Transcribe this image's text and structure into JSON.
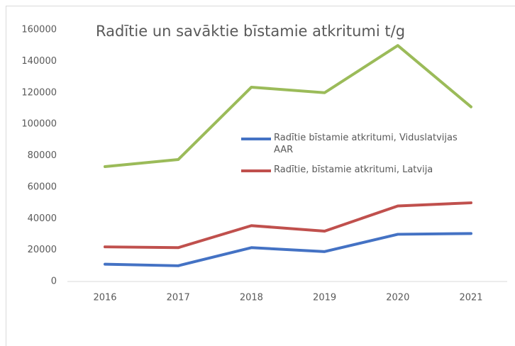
{
  "chart_data": {
    "type": "line",
    "title": "Radītie un savāktie bīstamie atkritumi t/g",
    "categories": [
      "2016",
      "2017",
      "2018",
      "2019",
      "2020",
      "2021"
    ],
    "series": [
      {
        "name": "Radītie bīstamie atkritumi, Viduslatvijas AAR",
        "color": "#4472c4",
        "values": [
          11000,
          10000,
          21500,
          19000,
          30000,
          30500
        ]
      },
      {
        "name": "Radītie, bīstamie atkritumi, Latvija",
        "color": "#c0504d",
        "values": [
          22000,
          21500,
          35500,
          32000,
          48000,
          50000
        ]
      },
      {
        "color": "#9bbb59",
        "values": [
          73000,
          77500,
          123500,
          120000,
          150000,
          111000
        ]
      }
    ],
    "ylim": [
      0,
      160000
    ],
    "yticks": [
      0,
      20000,
      40000,
      60000,
      80000,
      100000,
      120000,
      140000,
      160000
    ],
    "grid": false
  }
}
